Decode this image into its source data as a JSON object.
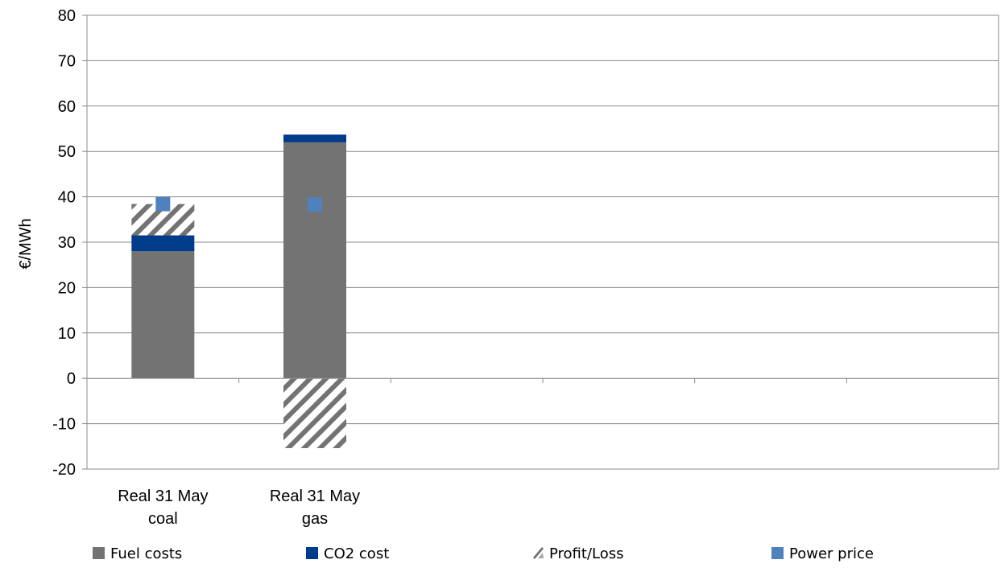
{
  "chart_data": {
    "type": "bar",
    "stacked": true,
    "categories": [
      [
        "Real 31 May",
        "coal"
      ],
      [
        "Real 31 May",
        "gas"
      ]
    ],
    "series": [
      {
        "name": "Fuel costs",
        "kind": "bar",
        "color": "#737373",
        "values": [
          28,
          52
        ]
      },
      {
        "name": "CO2 cost",
        "kind": "bar",
        "color": "#003C8A",
        "values": [
          3.5,
          1.7
        ]
      },
      {
        "name": "Profit/Loss",
        "kind": "bar",
        "pattern": "diagonal-hatch",
        "color": "#737373",
        "values": [
          6.9,
          -15.4
        ]
      },
      {
        "name": "Power price",
        "kind": "marker",
        "color": "#4F81BD",
        "values": [
          38.4,
          38.3
        ]
      }
    ],
    "ylabel": "€/MWh",
    "ylim": [
      -20,
      80
    ],
    "yticks": [
      -20,
      -10,
      0,
      10,
      20,
      30,
      40,
      50,
      60,
      70,
      80
    ],
    "n_category_slots": 6,
    "grid": true,
    "legend": "bottom"
  }
}
